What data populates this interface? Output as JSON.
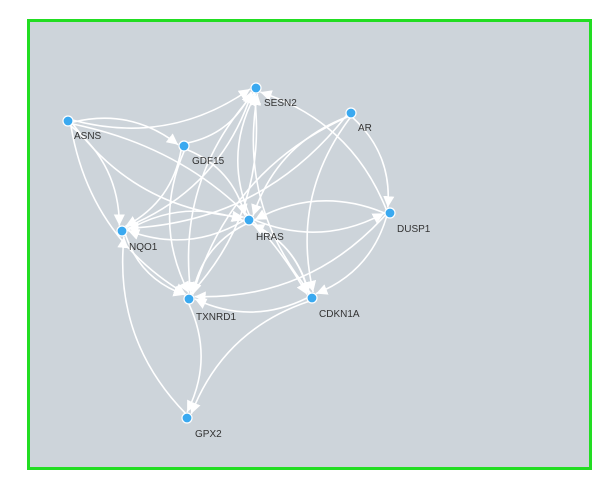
{
  "graph": {
    "colors": {
      "panel_border": "#22dd22",
      "panel_background": "#cdd4da",
      "edge": "#ffffff",
      "node": "#3aa9f0",
      "node_stroke": "#ffffff",
      "label": "#333333"
    },
    "nodes": [
      {
        "id": "ASNS",
        "label": "ASNS"
      },
      {
        "id": "SESN2",
        "label": "SESN2"
      },
      {
        "id": "AR",
        "label": "AR"
      },
      {
        "id": "GDF15",
        "label": "GDF15"
      },
      {
        "id": "DUSP1",
        "label": "DUSP1"
      },
      {
        "id": "HRAS",
        "label": "HRAS"
      },
      {
        "id": "NQO1",
        "label": "NQO1"
      },
      {
        "id": "TXNRD1",
        "label": "TXNRD1"
      },
      {
        "id": "CDKN1A",
        "label": "CDKN1A"
      },
      {
        "id": "GPX2",
        "label": "GPX2"
      }
    ],
    "edges": [
      {
        "source": "ASNS",
        "target": "SESN2"
      },
      {
        "source": "ASNS",
        "target": "GDF15"
      },
      {
        "source": "ASNS",
        "target": "HRAS"
      },
      {
        "source": "ASNS",
        "target": "NQO1"
      },
      {
        "source": "ASNS",
        "target": "TXNRD1"
      },
      {
        "source": "ASNS",
        "target": "CDKN1A"
      },
      {
        "source": "GDF15",
        "target": "SESN2"
      },
      {
        "source": "GDF15",
        "target": "HRAS"
      },
      {
        "source": "GDF15",
        "target": "TXNRD1"
      },
      {
        "source": "GDF15",
        "target": "NQO1"
      },
      {
        "source": "NQO1",
        "target": "SESN2"
      },
      {
        "source": "NQO1",
        "target": "HRAS"
      },
      {
        "source": "NQO1",
        "target": "TXNRD1"
      },
      {
        "source": "HRAS",
        "target": "SESN2"
      },
      {
        "source": "HRAS",
        "target": "TXNRD1"
      },
      {
        "source": "HRAS",
        "target": "CDKN1A"
      },
      {
        "source": "HRAS",
        "target": "DUSP1"
      },
      {
        "source": "HRAS",
        "target": "NQO1"
      },
      {
        "source": "AR",
        "target": "HRAS"
      },
      {
        "source": "AR",
        "target": "DUSP1"
      },
      {
        "source": "AR",
        "target": "TXNRD1"
      },
      {
        "source": "AR",
        "target": "NQO1"
      },
      {
        "source": "AR",
        "target": "CDKN1A"
      },
      {
        "source": "DUSP1",
        "target": "TXNRD1"
      },
      {
        "source": "DUSP1",
        "target": "HRAS"
      },
      {
        "source": "DUSP1",
        "target": "CDKN1A"
      },
      {
        "source": "DUSP1",
        "target": "SESN2"
      },
      {
        "source": "CDKN1A",
        "target": "TXNRD1"
      },
      {
        "source": "CDKN1A",
        "target": "GPX2"
      },
      {
        "source": "CDKN1A",
        "target": "SESN2"
      },
      {
        "source": "CDKN1A",
        "target": "HRAS"
      },
      {
        "source": "TXNRD1",
        "target": "GPX2"
      },
      {
        "source": "TXNRD1",
        "target": "SESN2"
      },
      {
        "source": "GPX2",
        "target": "NQO1"
      },
      {
        "source": "SESN2",
        "target": "TXNRD1"
      }
    ]
  }
}
